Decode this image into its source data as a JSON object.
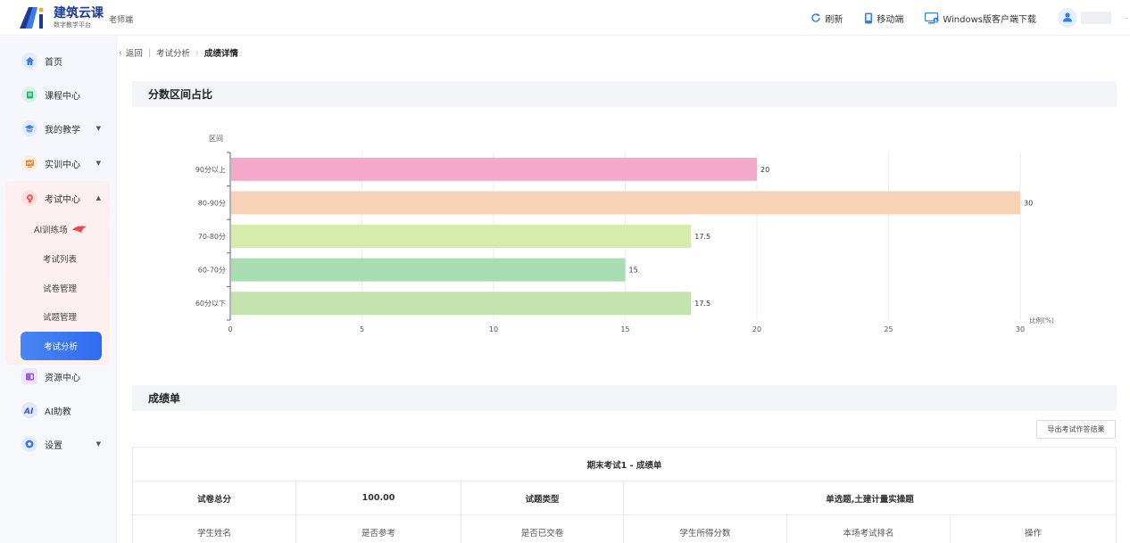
{
  "header": {
    "logo_title": "建筑云课",
    "logo_sub": "数字教学平台",
    "role": "老师端",
    "actions": [
      {
        "label": "刷新",
        "icon": "refresh-icon"
      },
      {
        "label": "移动端",
        "icon": "mobile-icon"
      },
      {
        "label": "Windows版客户端下载",
        "icon": "desktop-icon"
      }
    ],
    "user_icon": "user-icon"
  },
  "sidebar": {
    "items": [
      {
        "label": "首页",
        "icon": "home-icon",
        "color": "#3a7af3"
      },
      {
        "label": "课程中心",
        "icon": "book-icon",
        "color": "#2bb673"
      },
      {
        "label": "我的教学",
        "icon": "teaching-icon",
        "color": "#3a7af3",
        "arrow": "▼"
      },
      {
        "label": "实训中心",
        "icon": "training-icon",
        "color": "#f28b2c",
        "arrow": "▼"
      },
      {
        "label": "考试中心",
        "icon": "exam-icon",
        "color": "#f25a5a",
        "arrow": "▲"
      },
      {
        "label": "资源中心",
        "icon": "resource-icon",
        "color": "#9b59f0"
      },
      {
        "label": "AI助教",
        "icon": "ai-icon",
        "color": "#2f55c9"
      },
      {
        "label": "设置",
        "icon": "settings-icon",
        "color": "#3a7af3",
        "arrow": "▼"
      }
    ],
    "exam_sub": [
      {
        "label": "AI训练场"
      },
      {
        "label": "考试列表"
      },
      {
        "label": "试卷管理"
      },
      {
        "label": "试题管理"
      }
    ],
    "active_sub": "考试分析"
  },
  "breadcrumb": {
    "back": "返回",
    "parent": "考试分析",
    "current": "成绩详情"
  },
  "section_distribution": "分数区间占比",
  "section_scores": "成绩单",
  "chart_data": {
    "type": "bar",
    "orientation": "horizontal",
    "ylabel": "区间",
    "xlabel": "比例(%)",
    "categories": [
      "90分以上",
      "80-90分",
      "70-80分",
      "60-70分",
      "60分以下"
    ],
    "values": [
      20,
      30,
      17.5,
      15,
      17.5
    ],
    "value_labels": [
      "20",
      "30",
      "17.5",
      "15",
      "17.5"
    ],
    "colors": [
      "#f3a9c9",
      "#f8d2b6",
      "#d6ecaa",
      "#a7ddb1",
      "#c3e4af"
    ],
    "xlim": [
      0,
      30
    ],
    "xticks": [
      0,
      5,
      10,
      15,
      20,
      25,
      30
    ],
    "grid": true
  },
  "export_button": "导出考试作答结果",
  "score_table": {
    "title": "期末考试1 - 成绩单",
    "meta": [
      "试卷总分",
      "100.00",
      "试题类型",
      "单选题,土建计量实操题"
    ],
    "columns": [
      "学生姓名",
      "是否参考",
      "是否已交卷",
      "学生所得分数",
      "本场考试排名",
      "操作"
    ]
  }
}
